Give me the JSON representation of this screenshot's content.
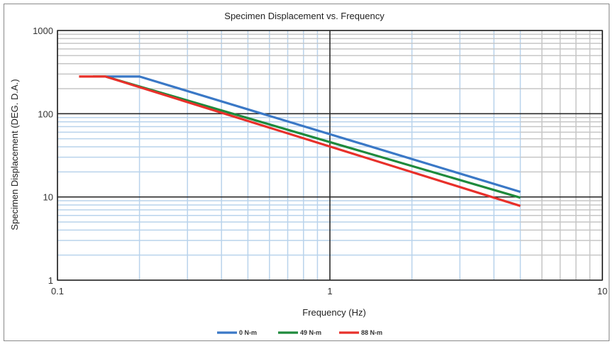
{
  "chart_data": {
    "type": "line",
    "title": "Specimen Displacement vs. Frequency",
    "xlabel": "Frequency (Hz)",
    "ylabel": "Specimen Displacement (DEG. D.A.)",
    "x_scale": "log",
    "y_scale": "log",
    "xlim": [
      0.1,
      10
    ],
    "ylim": [
      1,
      1000
    ],
    "grid": true,
    "legend_position": "bottom",
    "x_ticks": [
      {
        "value": 0.1,
        "label": "0.1"
      },
      {
        "value": 1,
        "label": "1"
      },
      {
        "value": 10,
        "label": "10"
      }
    ],
    "y_ticks": [
      {
        "value": 1,
        "label": "1"
      },
      {
        "value": 10,
        "label": "10"
      },
      {
        "value": 100,
        "label": "100"
      },
      {
        "value": 1000,
        "label": "1000"
      }
    ],
    "series": [
      {
        "name": "0 N-m",
        "color": "#3a78c6",
        "x": [
          0.15,
          0.2,
          5.0
        ],
        "y": [
          280,
          280,
          11.5
        ]
      },
      {
        "name": "49 N-m",
        "color": "#1e8a3c",
        "x": [
          0.135,
          0.15,
          5.0
        ],
        "y": [
          280,
          280,
          9.8
        ]
      },
      {
        "name": "88 N-m",
        "color": "#e8302a",
        "x": [
          0.12,
          0.15,
          5.0
        ],
        "y": [
          280,
          280,
          7.8
        ]
      }
    ]
  }
}
